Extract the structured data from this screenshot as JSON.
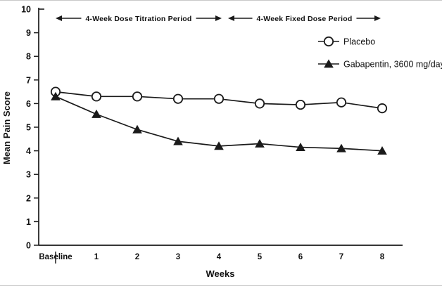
{
  "chart_data": {
    "type": "line",
    "title": "",
    "xlabel": "Weeks",
    "ylabel": "Mean Pain Score",
    "ylim": [
      0,
      10
    ],
    "yticks": [
      0,
      1,
      2,
      3,
      4,
      5,
      6,
      7,
      8,
      9,
      10
    ],
    "categories": [
      "Baseline",
      "1",
      "2",
      "3",
      "4",
      "5",
      "6",
      "7",
      "8"
    ],
    "series": [
      {
        "name": "Placebo",
        "marker": "circle",
        "values": [
          6.5,
          6.3,
          6.3,
          6.2,
          6.2,
          6.0,
          5.95,
          6.05,
          5.8
        ]
      },
      {
        "name": "Gabapentin, 3600 mg/day",
        "marker": "triangle",
        "values": [
          6.3,
          5.55,
          4.9,
          4.4,
          4.2,
          4.3,
          4.15,
          4.1,
          4.0
        ]
      }
    ],
    "annotations": [
      {
        "label": "4-Week Dose Titration Period",
        "from_category": "Baseline",
        "to_category": "4"
      },
      {
        "label": "4-Week Fixed Dose Period",
        "from_category": "4",
        "to_category": "8"
      }
    ],
    "legend_position": "upper right",
    "grid": false,
    "colors": {
      "line": "#1a1a1a",
      "background": "#ffffff"
    }
  }
}
